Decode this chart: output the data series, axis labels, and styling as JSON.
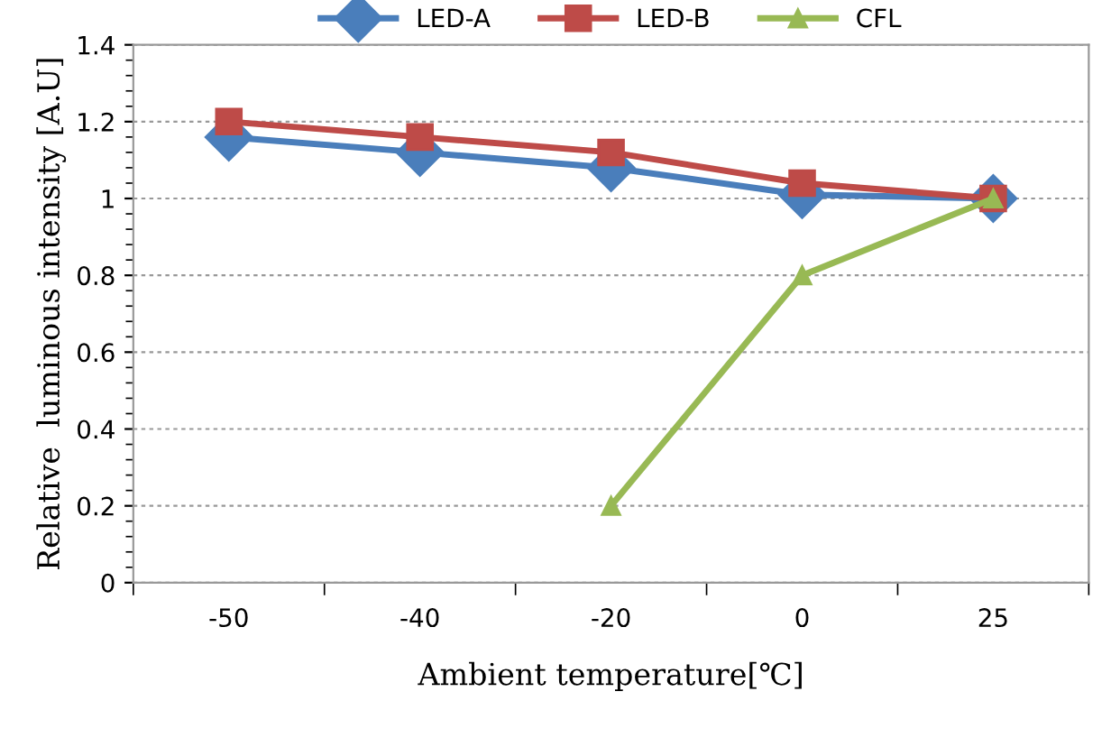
{
  "chart_data": {
    "type": "line",
    "xlabel": "Ambient temperature[℃]",
    "ylabel": "Relative  luminous intensity [A.U]",
    "categories": [
      "-50",
      "-40",
      "-20",
      "0",
      "25"
    ],
    "series": [
      {
        "name": "LED-A",
        "color": "#4a7ebb",
        "marker": "diamond",
        "values": [
          1.16,
          1.12,
          1.08,
          1.01,
          1.0
        ]
      },
      {
        "name": "LED-B",
        "color": "#be4b48",
        "marker": "square",
        "values": [
          1.2,
          1.16,
          1.12,
          1.04,
          1.0
        ]
      },
      {
        "name": "CFL",
        "color": "#98b954",
        "marker": "triangle",
        "values": [
          null,
          null,
          0.2,
          0.8,
          1.0
        ]
      }
    ],
    "ylim": [
      0,
      1.4
    ],
    "yticks": [
      0,
      0.2,
      0.4,
      0.6,
      0.8,
      1,
      1.2,
      1.4
    ],
    "grid": "y",
    "legend": "top",
    "line_style": "solid"
  }
}
